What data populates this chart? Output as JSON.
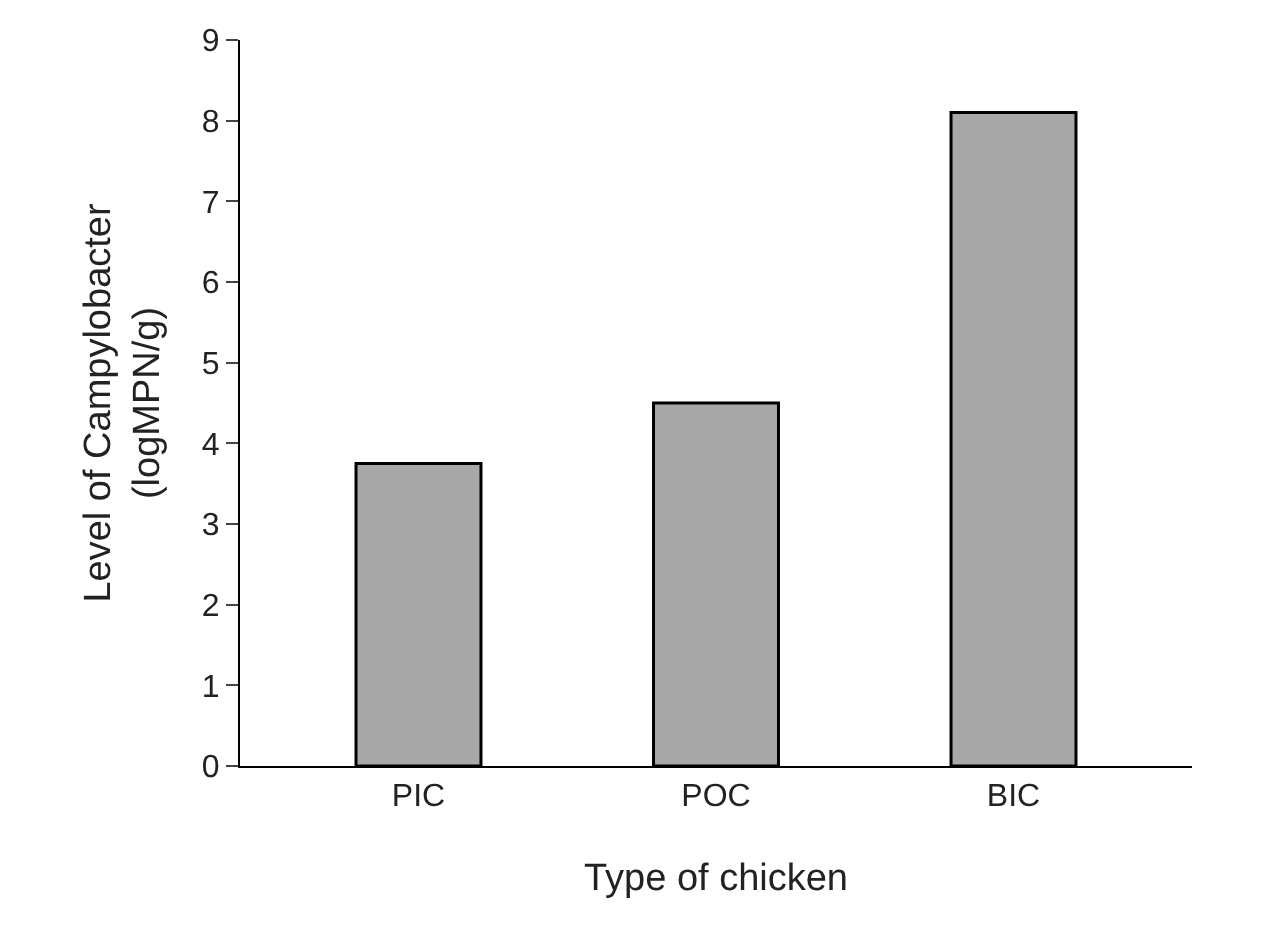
{
  "chart_data": {
    "type": "bar",
    "xlabel": "Type of chicken",
    "ylabel": "Level of Campylobacter\n(logMPN/g)",
    "categories": [
      "PIC",
      "POC",
      "BIC"
    ],
    "values": [
      3.75,
      4.5,
      8.1
    ],
    "color": "#a8a8a8",
    "ylim": [
      0,
      9
    ],
    "yticks": [
      0,
      1,
      2,
      3,
      4,
      5,
      6,
      7,
      8,
      9
    ]
  }
}
